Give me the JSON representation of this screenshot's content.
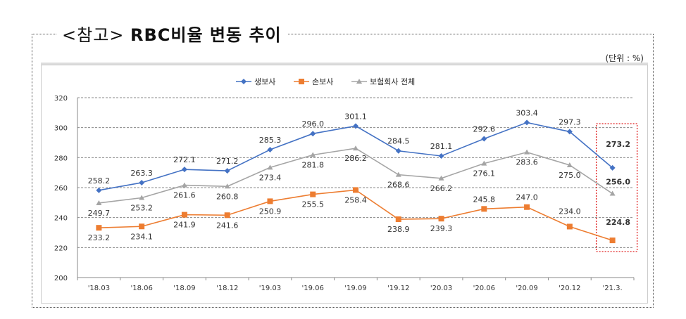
{
  "title": {
    "prefix": "<참고>",
    "main": "RBC비율 변동 추이"
  },
  "unit_label": "(단위 : %)",
  "chart_data": {
    "type": "line",
    "categories": [
      "'18.03",
      "'18.06",
      "'18.09",
      "'18.12",
      "'19.03",
      "'19.06",
      "'19.09",
      "'19.12",
      "'20.03",
      "'20.06",
      "'20.09",
      "'20.12",
      "'21.3."
    ],
    "ylim": [
      200,
      320
    ],
    "yticks": [
      200,
      220,
      240,
      260,
      280,
      300,
      320
    ],
    "grid": true,
    "legend_position": "top",
    "series": [
      {
        "name": "생보사",
        "color": "#4472C4",
        "marker": "diamond",
        "values": [
          258.2,
          263.3,
          272.1,
          271.2,
          285.3,
          296.0,
          301.1,
          284.5,
          281.1,
          292.6,
          303.4,
          297.3,
          273.2
        ]
      },
      {
        "name": "손보사",
        "color": "#ED7D31",
        "marker": "square",
        "values": [
          233.2,
          234.1,
          241.9,
          241.6,
          250.9,
          255.5,
          258.4,
          238.9,
          239.3,
          245.8,
          247.0,
          234.0,
          224.8
        ]
      },
      {
        "name": "보험회사 전체",
        "color": "#A5A5A5",
        "marker": "triangle",
        "values": [
          249.7,
          253.2,
          261.6,
          260.8,
          273.4,
          281.8,
          286.2,
          268.6,
          266.2,
          276.1,
          283.6,
          275.0,
          256.0
        ]
      }
    ],
    "highlight": {
      "category": "'21.3.",
      "color": "#E02020"
    }
  }
}
